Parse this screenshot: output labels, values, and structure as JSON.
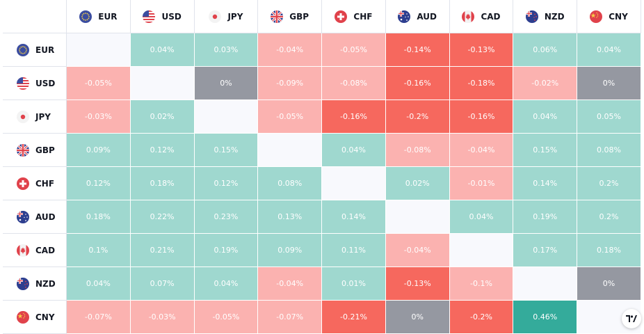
{
  "currencies": [
    "EUR",
    "USD",
    "JPY",
    "GBP",
    "CHF",
    "AUD",
    "CAD",
    "NZD",
    "CNY"
  ],
  "flags": [
    "eu-flag-icon",
    "us-flag-icon",
    "jp-flag-icon",
    "gb-flag-icon",
    "ch-flag-icon",
    "au-flag-icon",
    "ca-flag-icon",
    "nz-flag-icon",
    "cn-flag-icon"
  ],
  "rows": [
    {
      "label": "EUR",
      "cells": [
        {
          "v": "",
          "c": "empty"
        },
        {
          "v": "0.04%",
          "c": "g1"
        },
        {
          "v": "0.03%",
          "c": "g1"
        },
        {
          "v": "-0.04%",
          "c": "r1"
        },
        {
          "v": "-0.05%",
          "c": "r1"
        },
        {
          "v": "-0.14%",
          "c": "r2"
        },
        {
          "v": "-0.13%",
          "c": "r2"
        },
        {
          "v": "0.06%",
          "c": "g1"
        },
        {
          "v": "0.04%",
          "c": "g1"
        }
      ]
    },
    {
      "label": "USD",
      "cells": [
        {
          "v": "-0.05%",
          "c": "r1"
        },
        {
          "v": "",
          "c": "empty"
        },
        {
          "v": "0%",
          "c": "n"
        },
        {
          "v": "-0.09%",
          "c": "r1"
        },
        {
          "v": "-0.08%",
          "c": "r1"
        },
        {
          "v": "-0.16%",
          "c": "r2"
        },
        {
          "v": "-0.18%",
          "c": "r2"
        },
        {
          "v": "-0.02%",
          "c": "r1"
        },
        {
          "v": "0%",
          "c": "n"
        }
      ]
    },
    {
      "label": "JPY",
      "cells": [
        {
          "v": "-0.03%",
          "c": "r1"
        },
        {
          "v": "0.02%",
          "c": "g1"
        },
        {
          "v": "",
          "c": "empty"
        },
        {
          "v": "-0.05%",
          "c": "r1"
        },
        {
          "v": "-0.16%",
          "c": "r2"
        },
        {
          "v": "-0.2%",
          "c": "r2"
        },
        {
          "v": "-0.16%",
          "c": "r2"
        },
        {
          "v": "0.04%",
          "c": "g1"
        },
        {
          "v": "0.05%",
          "c": "g1"
        }
      ]
    },
    {
      "label": "GBP",
      "cells": [
        {
          "v": "0.09%",
          "c": "g1"
        },
        {
          "v": "0.12%",
          "c": "g1"
        },
        {
          "v": "0.15%",
          "c": "g1"
        },
        {
          "v": "",
          "c": "empty"
        },
        {
          "v": "0.04%",
          "c": "g1"
        },
        {
          "v": "-0.08%",
          "c": "r1"
        },
        {
          "v": "-0.04%",
          "c": "r1"
        },
        {
          "v": "0.15%",
          "c": "g1"
        },
        {
          "v": "0.08%",
          "c": "g1"
        }
      ]
    },
    {
      "label": "CHF",
      "cells": [
        {
          "v": "0.12%",
          "c": "g1"
        },
        {
          "v": "0.18%",
          "c": "g1"
        },
        {
          "v": "0.12%",
          "c": "g1"
        },
        {
          "v": "0.08%",
          "c": "g1"
        },
        {
          "v": "",
          "c": "empty"
        },
        {
          "v": "0.02%",
          "c": "g1"
        },
        {
          "v": "-0.01%",
          "c": "r1"
        },
        {
          "v": "0.14%",
          "c": "g1"
        },
        {
          "v": "0.2%",
          "c": "g1"
        }
      ]
    },
    {
      "label": "AUD",
      "cells": [
        {
          "v": "0.18%",
          "c": "g1"
        },
        {
          "v": "0.22%",
          "c": "g1"
        },
        {
          "v": "0.23%",
          "c": "g1"
        },
        {
          "v": "0.13%",
          "c": "g1"
        },
        {
          "v": "0.14%",
          "c": "g1"
        },
        {
          "v": "",
          "c": "empty"
        },
        {
          "v": "0.04%",
          "c": "g1"
        },
        {
          "v": "0.19%",
          "c": "g1"
        },
        {
          "v": "0.2%",
          "c": "g1"
        }
      ]
    },
    {
      "label": "CAD",
      "cells": [
        {
          "v": "0.1%",
          "c": "g1"
        },
        {
          "v": "0.21%",
          "c": "g1"
        },
        {
          "v": "0.19%",
          "c": "g1"
        },
        {
          "v": "0.09%",
          "c": "g1"
        },
        {
          "v": "0.11%",
          "c": "g1"
        },
        {
          "v": "-0.04%",
          "c": "r1"
        },
        {
          "v": "",
          "c": "empty"
        },
        {
          "v": "0.17%",
          "c": "g1"
        },
        {
          "v": "0.18%",
          "c": "g1"
        }
      ]
    },
    {
      "label": "NZD",
      "cells": [
        {
          "v": "0.04%",
          "c": "g1"
        },
        {
          "v": "0.07%",
          "c": "g1"
        },
        {
          "v": "0.04%",
          "c": "g1"
        },
        {
          "v": "-0.04%",
          "c": "r1"
        },
        {
          "v": "0.01%",
          "c": "g1"
        },
        {
          "v": "-0.13%",
          "c": "r2"
        },
        {
          "v": "-0.1%",
          "c": "r1"
        },
        {
          "v": "",
          "c": "empty"
        },
        {
          "v": "0%",
          "c": "n"
        }
      ]
    },
    {
      "label": "CNY",
      "cells": [
        {
          "v": "-0.07%",
          "c": "r1"
        },
        {
          "v": "-0.03%",
          "c": "r1"
        },
        {
          "v": "-0.05%",
          "c": "r1"
        },
        {
          "v": "-0.07%",
          "c": "r1"
        },
        {
          "v": "-0.21%",
          "c": "r2"
        },
        {
          "v": "0%",
          "c": "n"
        },
        {
          "v": "-0.2%",
          "c": "r2"
        },
        {
          "v": "0.46%",
          "c": "g2"
        },
        {
          "v": "",
          "c": "empty"
        }
      ]
    }
  ],
  "colors": {
    "positive_light": "#9fd8cf",
    "positive_strong": "#34ab9b",
    "negative_light": "#fbb2b0",
    "negative_strong": "#f6685e",
    "neutral": "#9598a1",
    "empty": "#f8f9fd"
  },
  "logo_icon": "tradingview-logo-icon"
}
